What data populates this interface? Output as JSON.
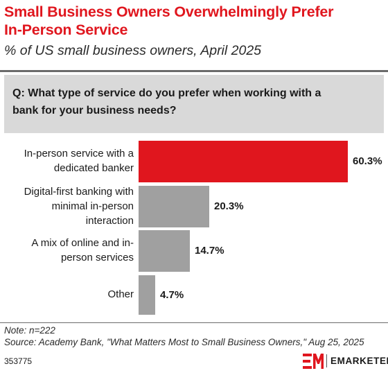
{
  "header": {
    "title_line1": "Small Business Owners Overwhelmingly Prefer",
    "title_line2": "In-Person Service",
    "subtitle": "% of US small business owners, April 2025"
  },
  "question": {
    "line1": "Q: What type of service do you prefer when working with a",
    "line2": "bank for your business needs?"
  },
  "chart_data": {
    "type": "bar",
    "orientation": "horizontal",
    "categories": [
      [
        "In-person service with a",
        "dedicated banker"
      ],
      [
        "Digital-first banking with",
        "minimal in-person",
        "interaction"
      ],
      [
        "A mix of online and in-",
        "person services"
      ],
      [
        "Other"
      ]
    ],
    "values": [
      60.3,
      20.3,
      14.7,
      4.7
    ],
    "value_labels": [
      "60.3%",
      "20.3%",
      "14.7%",
      "4.7%"
    ],
    "xlim": [
      0,
      60.3
    ],
    "colors": {
      "highlight": "#e0161e",
      "default": "#a0a0a0"
    },
    "highlight_index": 0
  },
  "footer": {
    "note": "Note: n=222",
    "source": "Source: Academy Bank, \"What Matters Most to Small Business Owners,\" Aug 25, 2025",
    "chart_id": "353775",
    "brand": "EMARKETER"
  }
}
